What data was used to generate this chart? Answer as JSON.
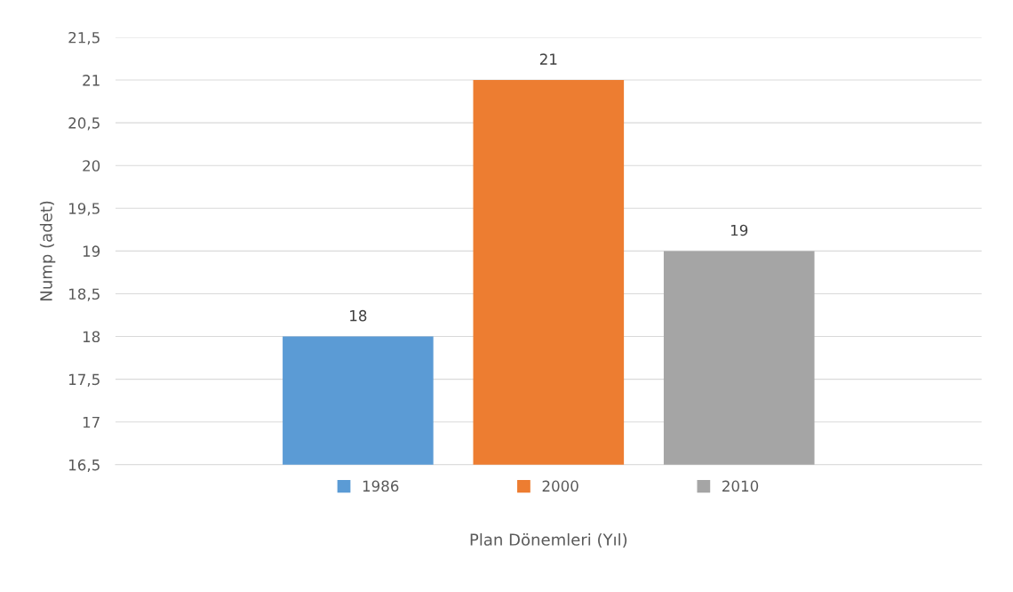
{
  "chart_data": {
    "type": "bar",
    "xlabel": "Plan Dönemleri (Yıl)",
    "ylabel": "Nump (adet)",
    "categories": [
      null
    ],
    "series": [
      {
        "name": "1986",
        "color": "#5b9bd5",
        "values": [
          18
        ]
      },
      {
        "name": "2000",
        "color": "#ed7d31",
        "values": [
          21
        ]
      },
      {
        "name": "2010",
        "color": "#a5a5a5",
        "values": [
          19
        ]
      }
    ],
    "ylim": [
      16.5,
      21.5
    ],
    "yticks": [
      {
        "value": 16.5,
        "label": "16,5"
      },
      17,
      {
        "value": 17.5,
        "label": "17,5"
      },
      18,
      {
        "value": 18.5,
        "label": "18,5"
      },
      19,
      {
        "value": 19.5,
        "label": "19,5"
      },
      20,
      {
        "value": 20.5,
        "label": "20,5"
      },
      21,
      {
        "value": 21.5,
        "label": "21,5"
      }
    ],
    "grid": "y",
    "legend": "bottom",
    "data_labels": true
  }
}
